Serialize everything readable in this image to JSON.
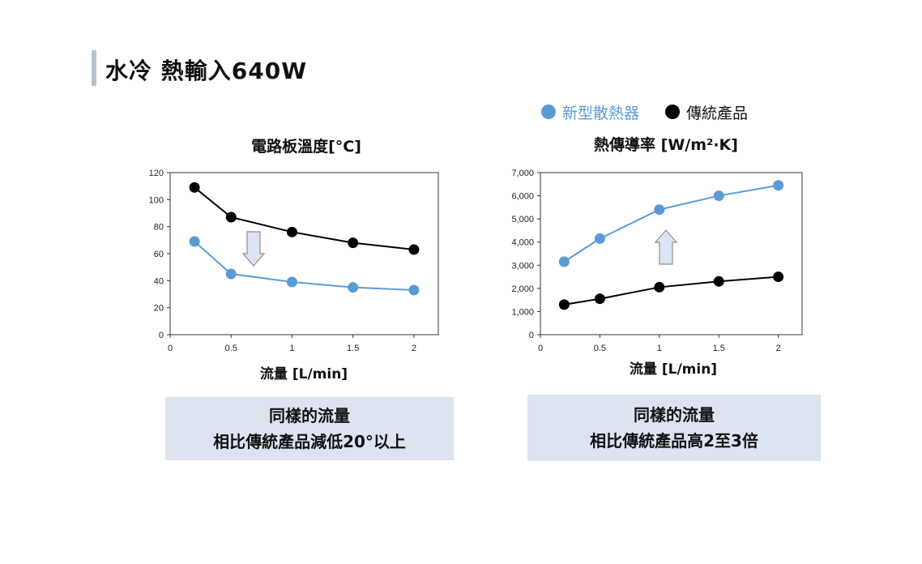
{
  "page_title": "水冷 熱輸入640W",
  "legend": [
    {
      "label": "新型散熱器",
      "color": "#5b9bd5",
      "text_color": "#5b9bd5"
    },
    {
      "label": "傳統產品",
      "color": "#000000",
      "text_color": "#111111"
    }
  ],
  "colors": {
    "new": "#5b9bd5",
    "traditional": "#000000",
    "note_bg": "#dce3f1",
    "arrow_fill": "#dbe4f2",
    "arrow_stroke": "#9c8a80"
  },
  "chart_data": [
    {
      "type": "line",
      "title": "電路板溫度[°C]",
      "xlabel": "流量 [L/min]",
      "ylabel": "",
      "xlim": [
        0,
        2.2
      ],
      "ylim": [
        0,
        120
      ],
      "xticks": [
        "0",
        "0.5",
        "1",
        "1.5",
        "2"
      ],
      "yticks": [
        "0",
        "20",
        "40",
        "60",
        "80",
        "100",
        "120"
      ],
      "series": [
        {
          "name": "傳統產品",
          "x": [
            0.2,
            0.5,
            1,
            1.5,
            2
          ],
          "y": [
            109,
            87,
            76,
            68,
            63
          ]
        },
        {
          "name": "新型散熱器",
          "x": [
            0.2,
            0.5,
            1,
            1.5,
            2
          ],
          "y": [
            69,
            45,
            39,
            35,
            33
          ]
        }
      ],
      "annotation": "down-arrow",
      "note": [
        "同樣的流量",
        "相比傳統產品減低20°以上"
      ]
    },
    {
      "type": "line",
      "title": "熱傳導率 [W/m²·K]",
      "xlabel": "流量 [L/min]",
      "ylabel": "",
      "xlim": [
        0,
        2.2
      ],
      "ylim": [
        0,
        7000
      ],
      "xticks": [
        "0",
        "0.5",
        "1",
        "1.5",
        "2"
      ],
      "yticks": [
        "0",
        "1,000",
        "2,000",
        "3,000",
        "4,000",
        "5,000",
        "6,000",
        "7,000"
      ],
      "series": [
        {
          "name": "新型散熱器",
          "x": [
            0.2,
            0.5,
            1,
            1.5,
            2
          ],
          "y": [
            3150,
            4150,
            5400,
            6000,
            6450
          ]
        },
        {
          "name": "傳統產品",
          "x": [
            0.2,
            0.5,
            1,
            1.5,
            2
          ],
          "y": [
            1300,
            1550,
            2050,
            2300,
            2500
          ]
        }
      ],
      "annotation": "up-arrow",
      "note": [
        "同樣的流量",
        "相比傳統產品高2至3倍"
      ]
    }
  ]
}
